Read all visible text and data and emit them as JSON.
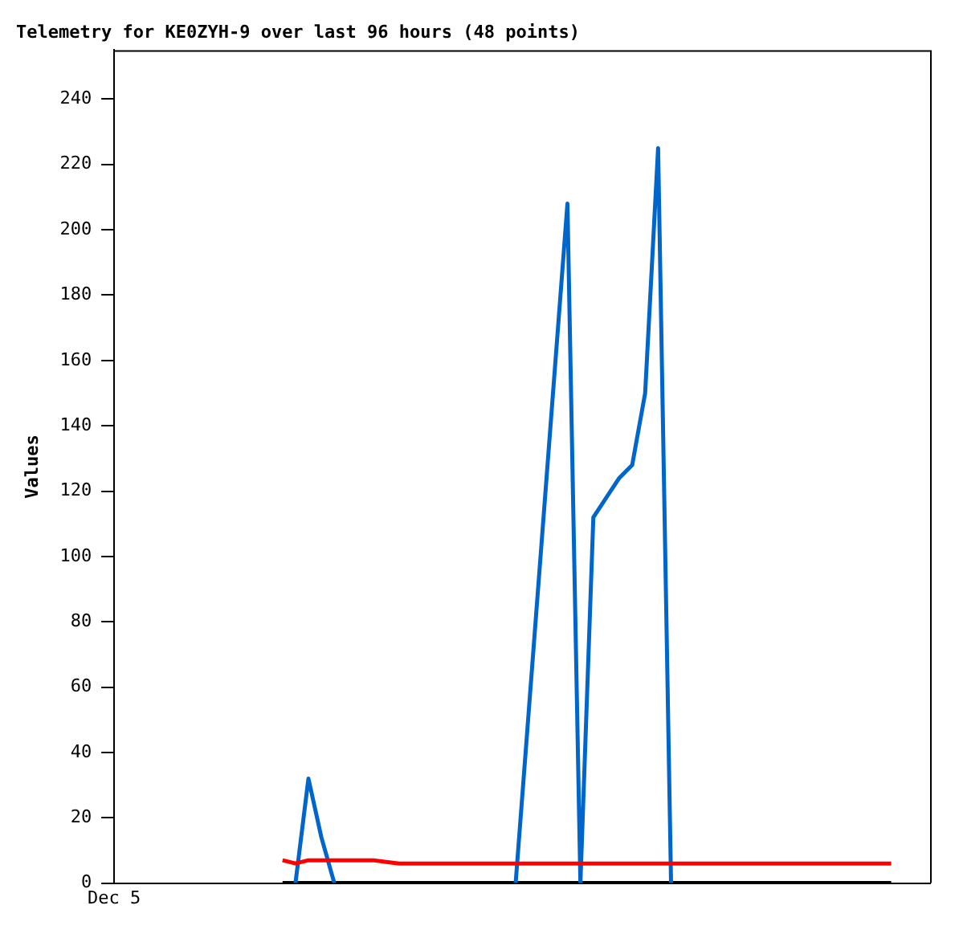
{
  "chart_data": {
    "type": "line",
    "title": "Telemetry for KE0ZYH-9 over last 96 hours (48 points)",
    "ylabel": "Values",
    "categories": [
      "Dec 5",
      null,
      null,
      null,
      null,
      null,
      null,
      null,
      null,
      null,
      null,
      null,
      null,
      null,
      null,
      null,
      null,
      null,
      null,
      null,
      null,
      null,
      null,
      null,
      null,
      null,
      null,
      null,
      null,
      null,
      null,
      null,
      null,
      null,
      null,
      null,
      null,
      null,
      null,
      null,
      null,
      null,
      null,
      null,
      null,
      null,
      null,
      null,
      null,
      null,
      null,
      null,
      null,
      null,
      null,
      null,
      null,
      null,
      null,
      null,
      null,
      null,
      null,
      null
    ],
    "ylim": [
      0,
      255
    ],
    "yticks": [
      0,
      20,
      40,
      60,
      80,
      100,
      120,
      140,
      160,
      180,
      200,
      220,
      240
    ],
    "grid": false,
    "legend": false,
    "marker": "none",
    "line_style": "solid",
    "series": [
      {
        "color": "#ff0000",
        "values": [
          null,
          null,
          null,
          null,
          null,
          null,
          null,
          null,
          null,
          null,
          null,
          null,
          null,
          7,
          6,
          7,
          7,
          7,
          7,
          7,
          7,
          6.5,
          6,
          6,
          6,
          6,
          6,
          6,
          6,
          6,
          6,
          6,
          6,
          6,
          6,
          6,
          6,
          6,
          6,
          6,
          6,
          6,
          6,
          6,
          6,
          6,
          6,
          6,
          6,
          6,
          6,
          6,
          6,
          6,
          6,
          6,
          6,
          6,
          6,
          6,
          6,
          null,
          null,
          null
        ]
      },
      {
        "color": "#0066cc",
        "values": [
          null,
          null,
          null,
          null,
          null,
          null,
          null,
          null,
          null,
          null,
          null,
          null,
          null,
          null,
          0,
          32,
          14,
          0,
          null,
          null,
          null,
          null,
          null,
          null,
          null,
          null,
          null,
          null,
          null,
          null,
          null,
          0,
          52,
          104,
          156,
          208,
          0,
          112,
          118,
          124,
          128,
          150,
          225,
          0,
          null,
          null,
          null,
          null,
          null,
          null,
          null,
          null,
          null,
          null,
          null,
          null,
          null,
          null,
          null,
          null,
          null,
          null,
          null,
          null
        ]
      },
      {
        "color": "#000000",
        "values": [
          null,
          null,
          null,
          null,
          null,
          null,
          null,
          null,
          null,
          null,
          null,
          null,
          null,
          0,
          0,
          0,
          0,
          0,
          0,
          0,
          0,
          0,
          0,
          0,
          0,
          0,
          0,
          0,
          0,
          0,
          0,
          0,
          0,
          0,
          0,
          0,
          0,
          0,
          0,
          0,
          0,
          0,
          0,
          0,
          0,
          0,
          0,
          0,
          0,
          0,
          0,
          0,
          0,
          0,
          0,
          0,
          0,
          0,
          0,
          0,
          0,
          null,
          null,
          null
        ]
      }
    ]
  }
}
